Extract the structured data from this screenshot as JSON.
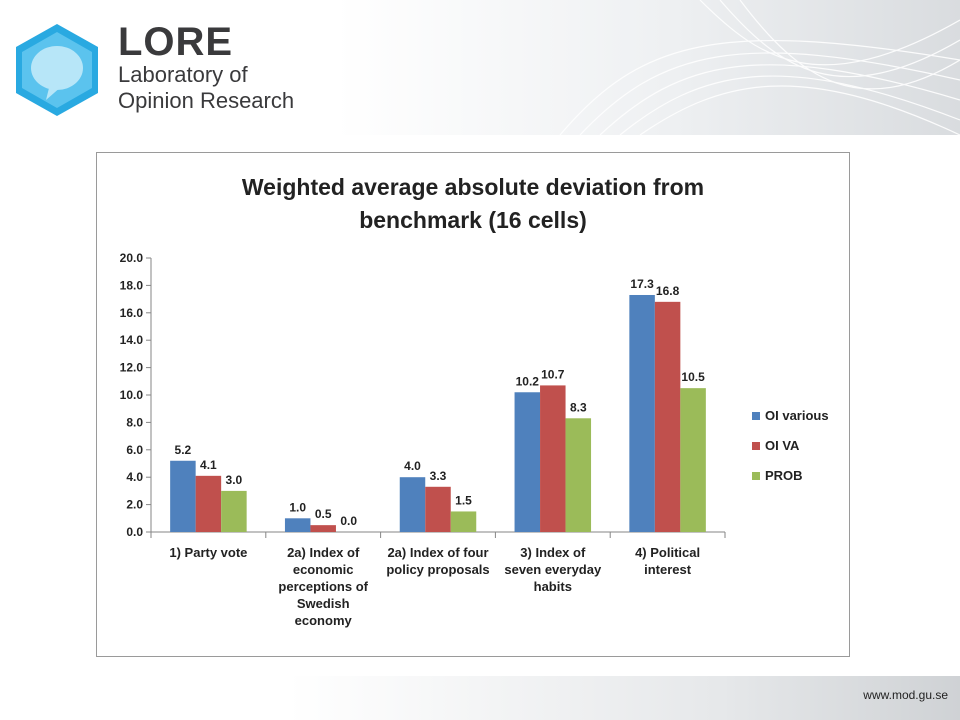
{
  "branding": {
    "name": "LORE",
    "line1": "Laboratory of",
    "line2": "Opinion Research",
    "logo_color": "#29a9e1"
  },
  "footer": {
    "url": "www.mod.gu.se"
  },
  "chart_data": {
    "type": "bar",
    "title_lines": [
      "Weighted average absolute deviation from",
      "benchmark (16 cells)"
    ],
    "categories": [
      [
        "1) Party vote"
      ],
      [
        "2a) Index of",
        "economic",
        "perceptions of",
        "Swedish",
        "economy"
      ],
      [
        "2a) Index of four",
        "policy proposals"
      ],
      [
        "3) Index of",
        "seven everyday",
        "habits"
      ],
      [
        "4) Political",
        "interest"
      ]
    ],
    "series": [
      {
        "name": "OI various",
        "color": "#4f81bd",
        "values": [
          5.2,
          1.0,
          4.0,
          10.2,
          17.3
        ],
        "labels": [
          "5.2",
          "1.0",
          "4.0",
          "10.2",
          "17.3"
        ]
      },
      {
        "name": "OI VA",
        "color": "#c0504d",
        "values": [
          4.1,
          0.5,
          3.3,
          10.7,
          16.8
        ],
        "labels": [
          "4.1",
          "0.5",
          "3.3",
          "10.7",
          "16.8"
        ]
      },
      {
        "name": "PROB",
        "color": "#9bbb59",
        "values": [
          3.0,
          0.0,
          1.5,
          8.3,
          10.5
        ],
        "labels": [
          "3.0",
          "0.0",
          "1.5",
          "8.3",
          "10.5"
        ]
      }
    ],
    "yticks": [
      "0.0",
      "2.0",
      "4.0",
      "6.0",
      "8.0",
      "10.0",
      "12.0",
      "14.0",
      "16.0",
      "18.0",
      "20.0"
    ],
    "ylim": [
      0,
      20
    ],
    "grid": false,
    "legend_position": "right"
  }
}
